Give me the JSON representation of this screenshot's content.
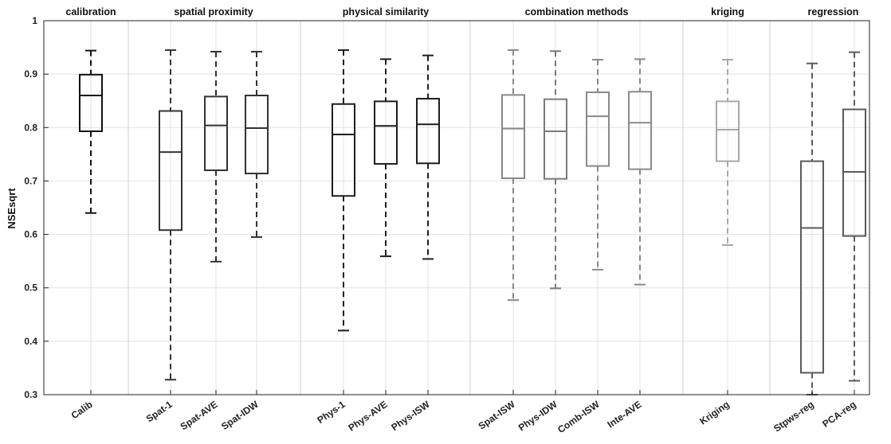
{
  "chart_data": {
    "type": "box",
    "title": "",
    "xlabel": "",
    "ylabel": "NSEsqrt",
    "ylim": [
      0.3,
      1.0
    ],
    "yticks": [
      "0.3",
      "0.4",
      "0.5",
      "0.6",
      "0.7",
      "0.8",
      "0.9",
      "1"
    ],
    "grid": true,
    "groups": [
      {
        "label": "calibration",
        "members": [
          "Calib"
        ]
      },
      {
        "label": "spatial proximity",
        "members": [
          "Spat-1",
          "Spat-AVE",
          "Spat-IDW"
        ]
      },
      {
        "label": "physical similarity",
        "members": [
          "Phys-1",
          "Phys-AVE",
          "Phys-ISW"
        ]
      },
      {
        "label": "combination methods",
        "members": [
          "Spat-ISW",
          "Phys-IDW",
          "Comb-ISW",
          "Inte-AVE"
        ]
      },
      {
        "label": "kriging",
        "members": [
          "Kriging"
        ]
      },
      {
        "label": "regression",
        "members": [
          "Stpws-reg",
          "PCA-reg"
        ]
      }
    ],
    "categories": [
      "Calib",
      "Spat-1",
      "Spat-AVE",
      "Spat-IDW",
      "Phys-1",
      "Phys-AVE",
      "Phys-ISW",
      "Spat-ISW",
      "Phys-IDW",
      "Comb-ISW",
      "Inte-AVE",
      "Kriging",
      "Stpws-reg",
      "PCA-reg"
    ],
    "boxes": [
      {
        "label": "Calib",
        "min": 0.64,
        "q1": 0.793,
        "median": 0.86,
        "q3": 0.899,
        "max": 0.944,
        "color": "#111111"
      },
      {
        "label": "Spat-1",
        "min": 0.328,
        "q1": 0.608,
        "median": 0.754,
        "q3": 0.831,
        "max": 0.945,
        "color": "#333333"
      },
      {
        "label": "Spat-AVE",
        "min": 0.549,
        "q1": 0.72,
        "median": 0.804,
        "q3": 0.858,
        "max": 0.942,
        "color": "#333333"
      },
      {
        "label": "Spat-IDW",
        "min": 0.595,
        "q1": 0.714,
        "median": 0.799,
        "q3": 0.86,
        "max": 0.942,
        "color": "#333333"
      },
      {
        "label": "Phys-1",
        "min": 0.42,
        "q1": 0.672,
        "median": 0.787,
        "q3": 0.844,
        "max": 0.945,
        "color": "#1e1e1e"
      },
      {
        "label": "Phys-AVE",
        "min": 0.559,
        "q1": 0.732,
        "median": 0.803,
        "q3": 0.849,
        "max": 0.928,
        "color": "#1e1e1e"
      },
      {
        "label": "Phys-ISW",
        "min": 0.554,
        "q1": 0.733,
        "median": 0.806,
        "q3": 0.854,
        "max": 0.935,
        "color": "#1e1e1e"
      },
      {
        "label": "Spat-ISW",
        "min": 0.477,
        "q1": 0.705,
        "median": 0.798,
        "q3": 0.861,
        "max": 0.945,
        "color": "#888888"
      },
      {
        "label": "Phys-IDW",
        "min": 0.499,
        "q1": 0.704,
        "median": 0.793,
        "q3": 0.853,
        "max": 0.943,
        "color": "#7a7a7a"
      },
      {
        "label": "Comb-ISW",
        "min": 0.534,
        "q1": 0.728,
        "median": 0.821,
        "q3": 0.866,
        "max": 0.927,
        "color": "#8a8a8a"
      },
      {
        "label": "Inte-AVE",
        "min": 0.506,
        "q1": 0.722,
        "median": 0.809,
        "q3": 0.867,
        "max": 0.928,
        "color": "#8a8a8a"
      },
      {
        "label": "Kriging",
        "min": 0.58,
        "q1": 0.737,
        "median": 0.796,
        "q3": 0.849,
        "max": 0.927,
        "color": "#a8a8a8"
      },
      {
        "label": "Stpws-reg",
        "min": 0.3,
        "q1": 0.341,
        "median": 0.612,
        "q3": 0.737,
        "max": 0.92,
        "color": "#5a5a5a"
      },
      {
        "label": "PCA-reg",
        "min": 0.326,
        "q1": 0.597,
        "median": 0.717,
        "q3": 0.834,
        "max": 0.941,
        "color": "#5a5a5a"
      }
    ]
  }
}
